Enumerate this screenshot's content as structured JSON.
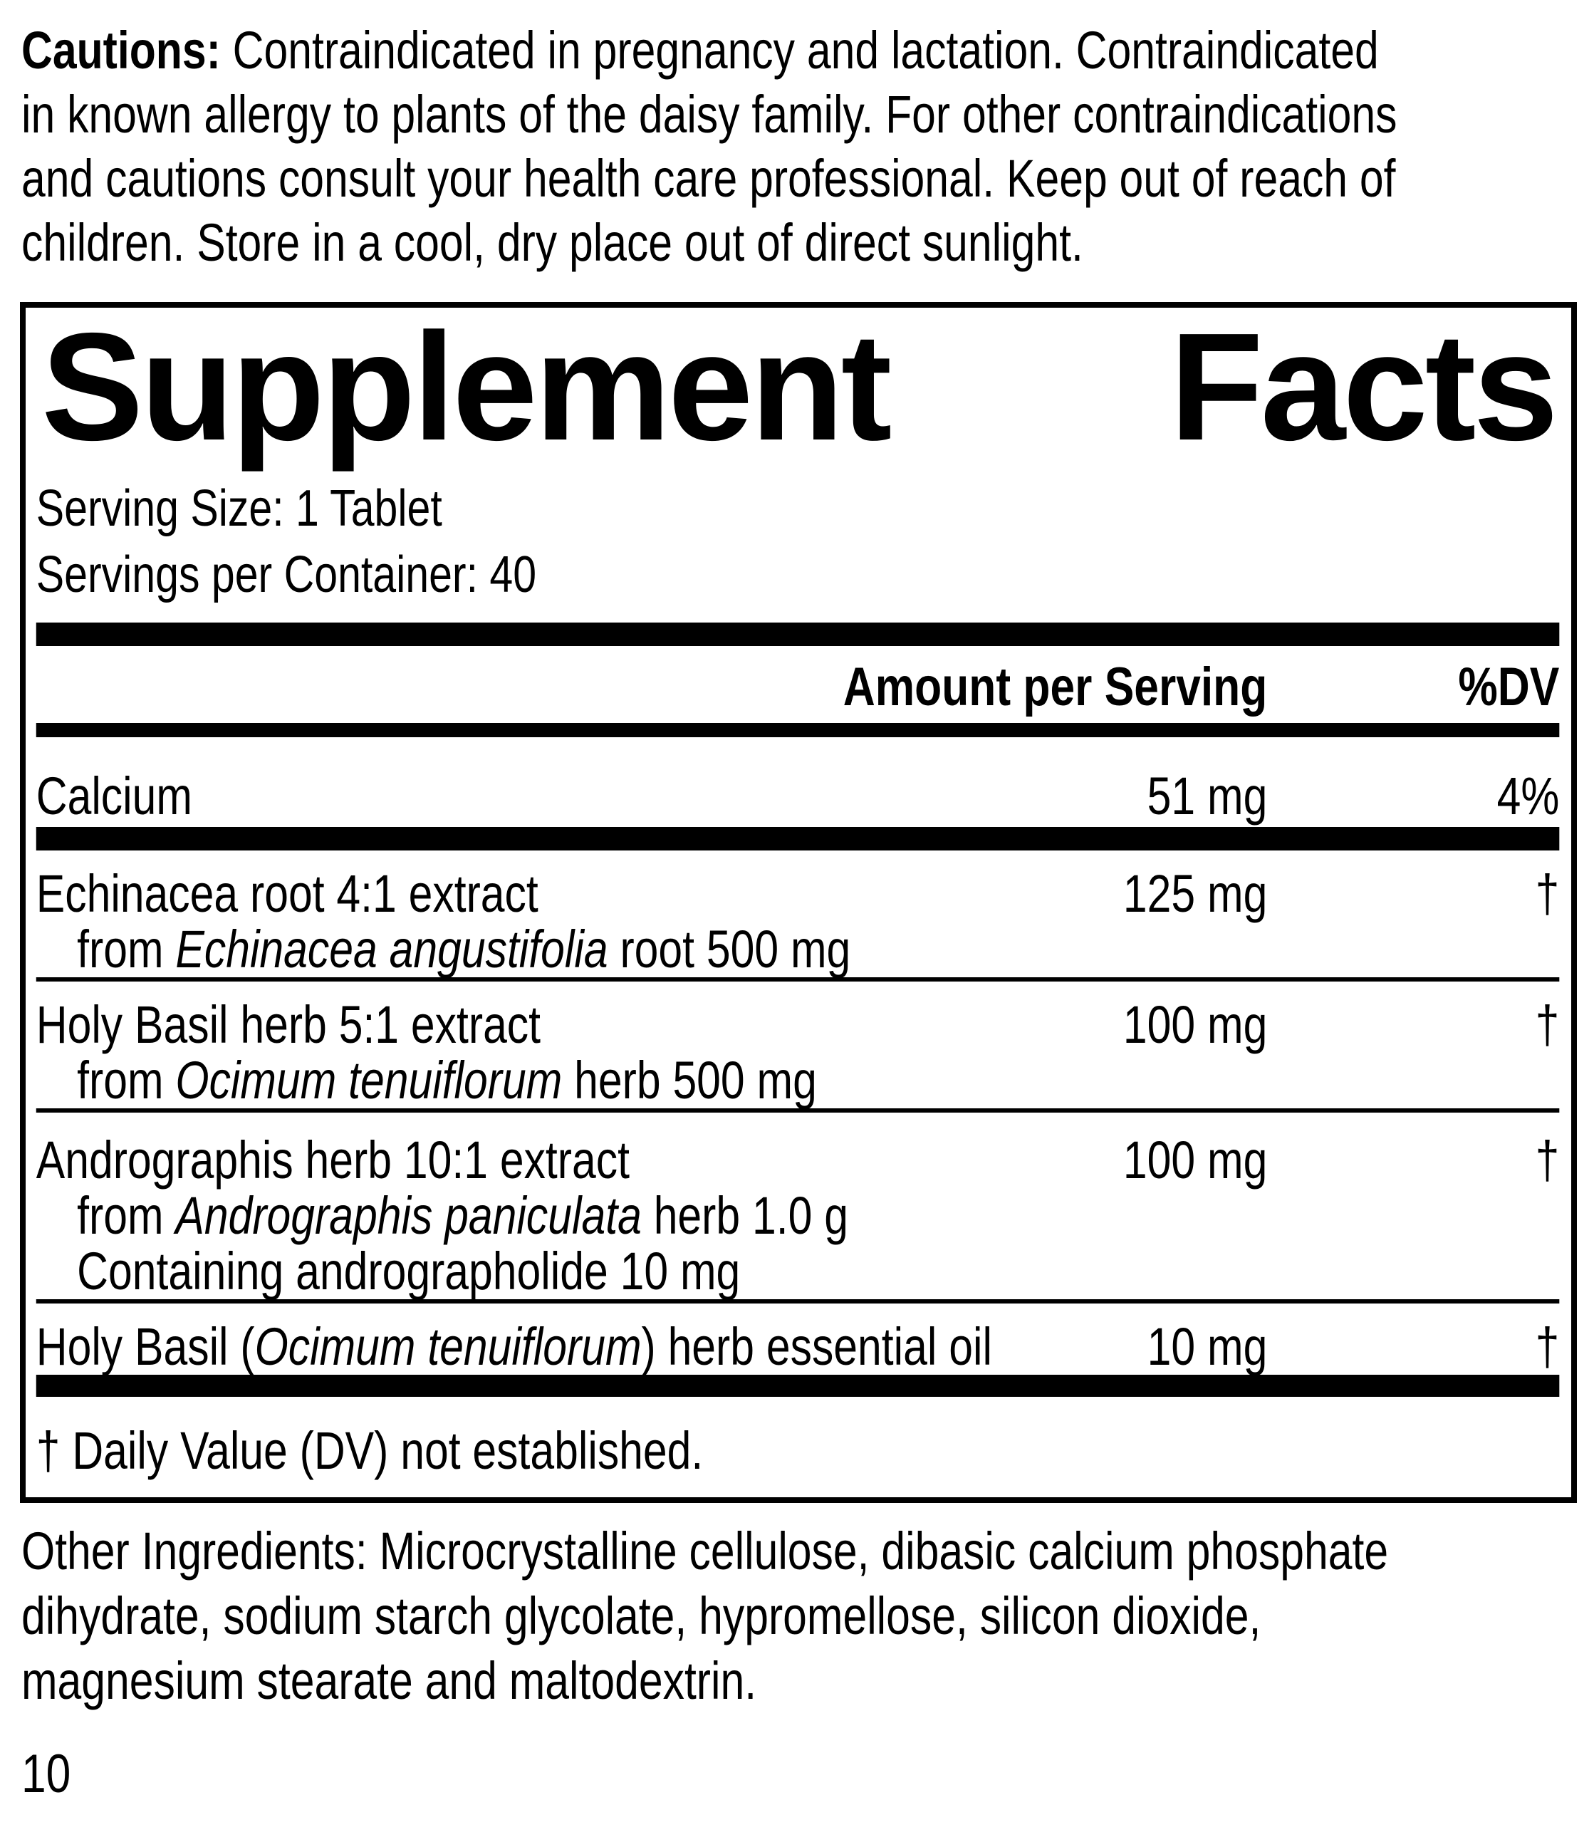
{
  "colors": {
    "text": "#000000",
    "background": "#ffffff"
  },
  "cautions": {
    "lines": [
      [
        {
          "t": "Cautions: ",
          "b": true
        },
        {
          "t": "Contraindicated in pregnancy and lactation. Contraindicated"
        }
      ],
      [
        {
          "t": "in known allergy to plants of the daisy family. For other contraindications"
        }
      ],
      [
        {
          "t": "and cautions consult your health care professional. Keep out of reach of"
        }
      ],
      [
        {
          "t": "children. Store in a cool, dry place out of direct sunlight."
        }
      ]
    ]
  },
  "panel": {
    "title_word1": "Supplement",
    "title_word2": "Facts",
    "serving_size": "Serving Size: 1 Tablet",
    "servings_per_container": "Servings per Container: 40",
    "header": {
      "amount": "Amount per Serving",
      "dv": "%DV"
    },
    "rows": [
      {
        "name": [
          {
            "t": "Calcium"
          }
        ],
        "amount": "51 mg",
        "dv": "4%",
        "sub": [],
        "divider_after": "bar"
      },
      {
        "name": [
          {
            "t": "Echinacea root 4:1 extract"
          }
        ],
        "amount": "125 mg",
        "dv": "†",
        "sub": [
          [
            {
              "t": "from "
            },
            {
              "t": "Echinacea angustifolia",
              "i": true
            },
            {
              "t": " root 500 mg"
            }
          ]
        ],
        "divider_after": "line"
      },
      {
        "name": [
          {
            "t": "Holy Basil herb 5:1 extract"
          }
        ],
        "amount": "100 mg",
        "dv": "†",
        "sub": [
          [
            {
              "t": "from "
            },
            {
              "t": "Ocimum tenuiflorum",
              "i": true
            },
            {
              "t": " herb 500 mg"
            }
          ]
        ],
        "divider_after": "line"
      },
      {
        "name": [
          {
            "t": "Andrographis herb 10:1 extract"
          }
        ],
        "amount": "100 mg",
        "dv": "†",
        "sub": [
          [
            {
              "t": "from "
            },
            {
              "t": "Andrographis paniculata",
              "i": true
            },
            {
              "t": " herb 1.0 g"
            }
          ],
          [
            {
              "t": "Containing andrographolide 10 mg"
            }
          ]
        ],
        "divider_after": "line"
      },
      {
        "name": [
          {
            "t": "Holy Basil ("
          },
          {
            "t": "Ocimum tenuiflorum",
            "i": true
          },
          {
            "t": ") herb essential oil"
          }
        ],
        "amount": "10 mg",
        "dv": "†",
        "sub": [],
        "divider_after": "bar-bottom"
      }
    ],
    "footnote": "† Daily Value (DV) not established."
  },
  "other_ingredients": {
    "lines": [
      "Other Ingredients: Microcrystalline cellulose, dibasic calcium phosphate",
      "dihydrate, sodium starch glycolate, hypromellose, silicon dioxide,",
      "magnesium stearate and maltodextrin."
    ]
  },
  "page_number": "10"
}
